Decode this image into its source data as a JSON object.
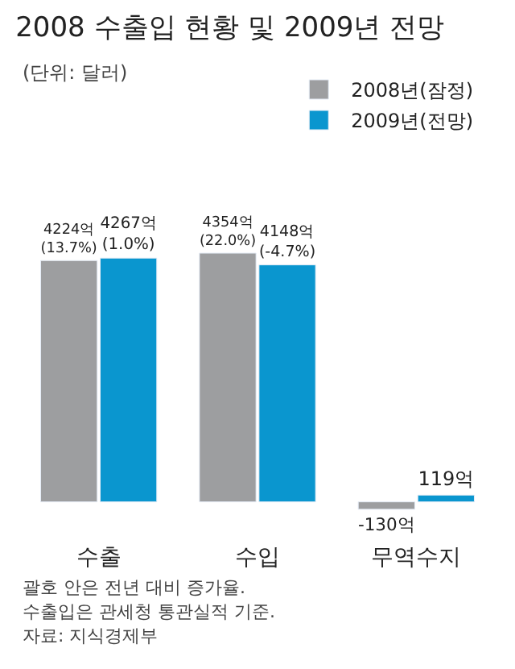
{
  "chart_data": {
    "type": "bar",
    "title": "2008 수출입 현황 및 2009년 전망",
    "subtitle": "(단위: 달러)",
    "categories": [
      "수출",
      "수입",
      "무역수지"
    ],
    "series": [
      {
        "name": "2008년(잠정)",
        "color": "#9d9ea0",
        "values": [
          4224,
          4354,
          -130
        ],
        "value_labels": [
          "4224억\n(13.7%)",
          "4354억\n(22.0%)",
          "-130억"
        ]
      },
      {
        "name": "2009년(전망)",
        "color": "#0a96cf",
        "values": [
          4267,
          4148,
          119
        ],
        "value_labels": [
          "4267억\n(1.0%)",
          "4148억\n(-4.7%)",
          "119억"
        ]
      }
    ],
    "legend": "top right",
    "annotations": [
      "괄호 안은 전년 대비 증가율.",
      "수출입은 관세청 통관실적 기준.",
      "자료: 지식경제부"
    ]
  }
}
